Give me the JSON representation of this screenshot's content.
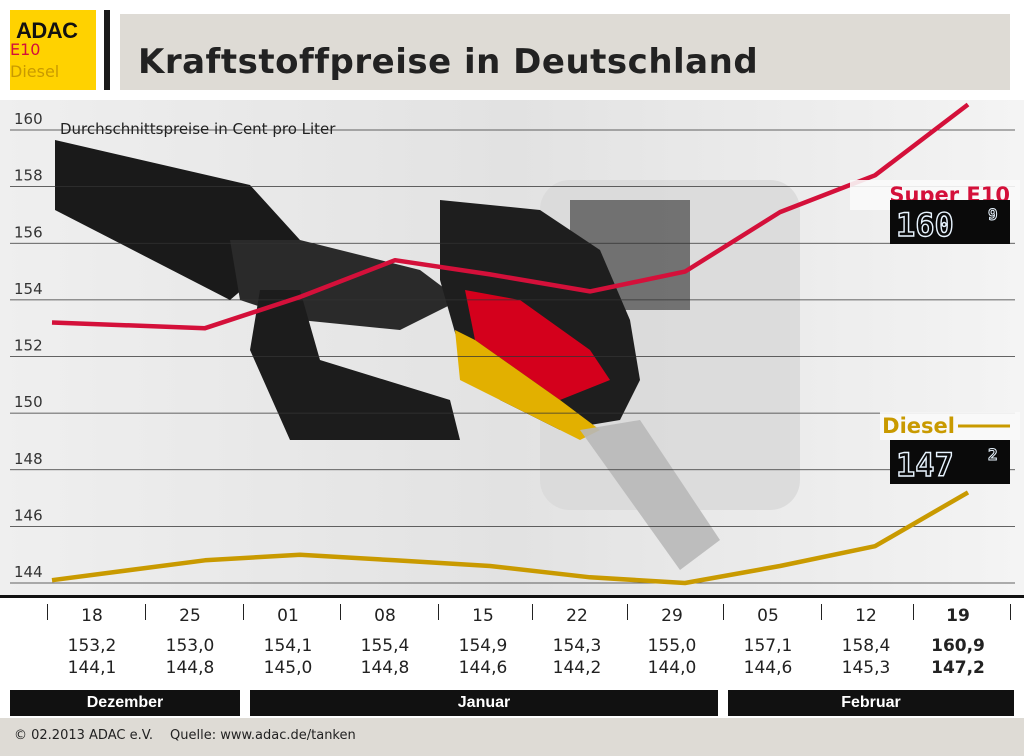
{
  "logo": {
    "text": "ADAC"
  },
  "title": "Kraftstoffpreise in Deutschland",
  "colors": {
    "e10": "#d4103a",
    "diesel": "#c99a00",
    "brand": "#ffd200"
  },
  "chart_data": {
    "type": "line",
    "unit_label": "Durchschnittspreise in Cent pro Liter",
    "ylim": [
      143.5,
      160
    ],
    "yticks": [
      144,
      146,
      148,
      150,
      152,
      154,
      156,
      158,
      160
    ],
    "grid": true,
    "x": [
      "18",
      "25",
      "01",
      "08",
      "15",
      "22",
      "29",
      "05",
      "12",
      "19"
    ],
    "series": [
      {
        "name": "Super E10",
        "key": "e10",
        "values": [
          153.2,
          153.0,
          154.1,
          155.4,
          154.9,
          154.3,
          155.0,
          157.1,
          158.4,
          160.9
        ],
        "display": "160",
        "display_sup": "9"
      },
      {
        "name": "Diesel",
        "key": "diesel",
        "values": [
          144.1,
          144.8,
          145.0,
          144.8,
          144.6,
          144.2,
          144.0,
          144.6,
          145.3,
          147.2
        ],
        "display": "147",
        "display_sup": "2"
      }
    ],
    "months": [
      "Dezember",
      "Januar",
      "Februar"
    ]
  },
  "table": {
    "e10_label": "E10",
    "diesel_label": "Diesel",
    "e10_values": [
      "153,2",
      "153,0",
      "154,1",
      "155,4",
      "154,9",
      "154,3",
      "155,0",
      "157,1",
      "158,4",
      "160,9"
    ],
    "diesel_values": [
      "144,1",
      "144,8",
      "145,0",
      "144,8",
      "144,6",
      "144,2",
      "144,0",
      "144,6",
      "145,3",
      "147,2"
    ]
  },
  "footer": {
    "copyright": "© 02.2013  ADAC e.V.",
    "source": "Quelle: www.adac.de/tanken"
  }
}
